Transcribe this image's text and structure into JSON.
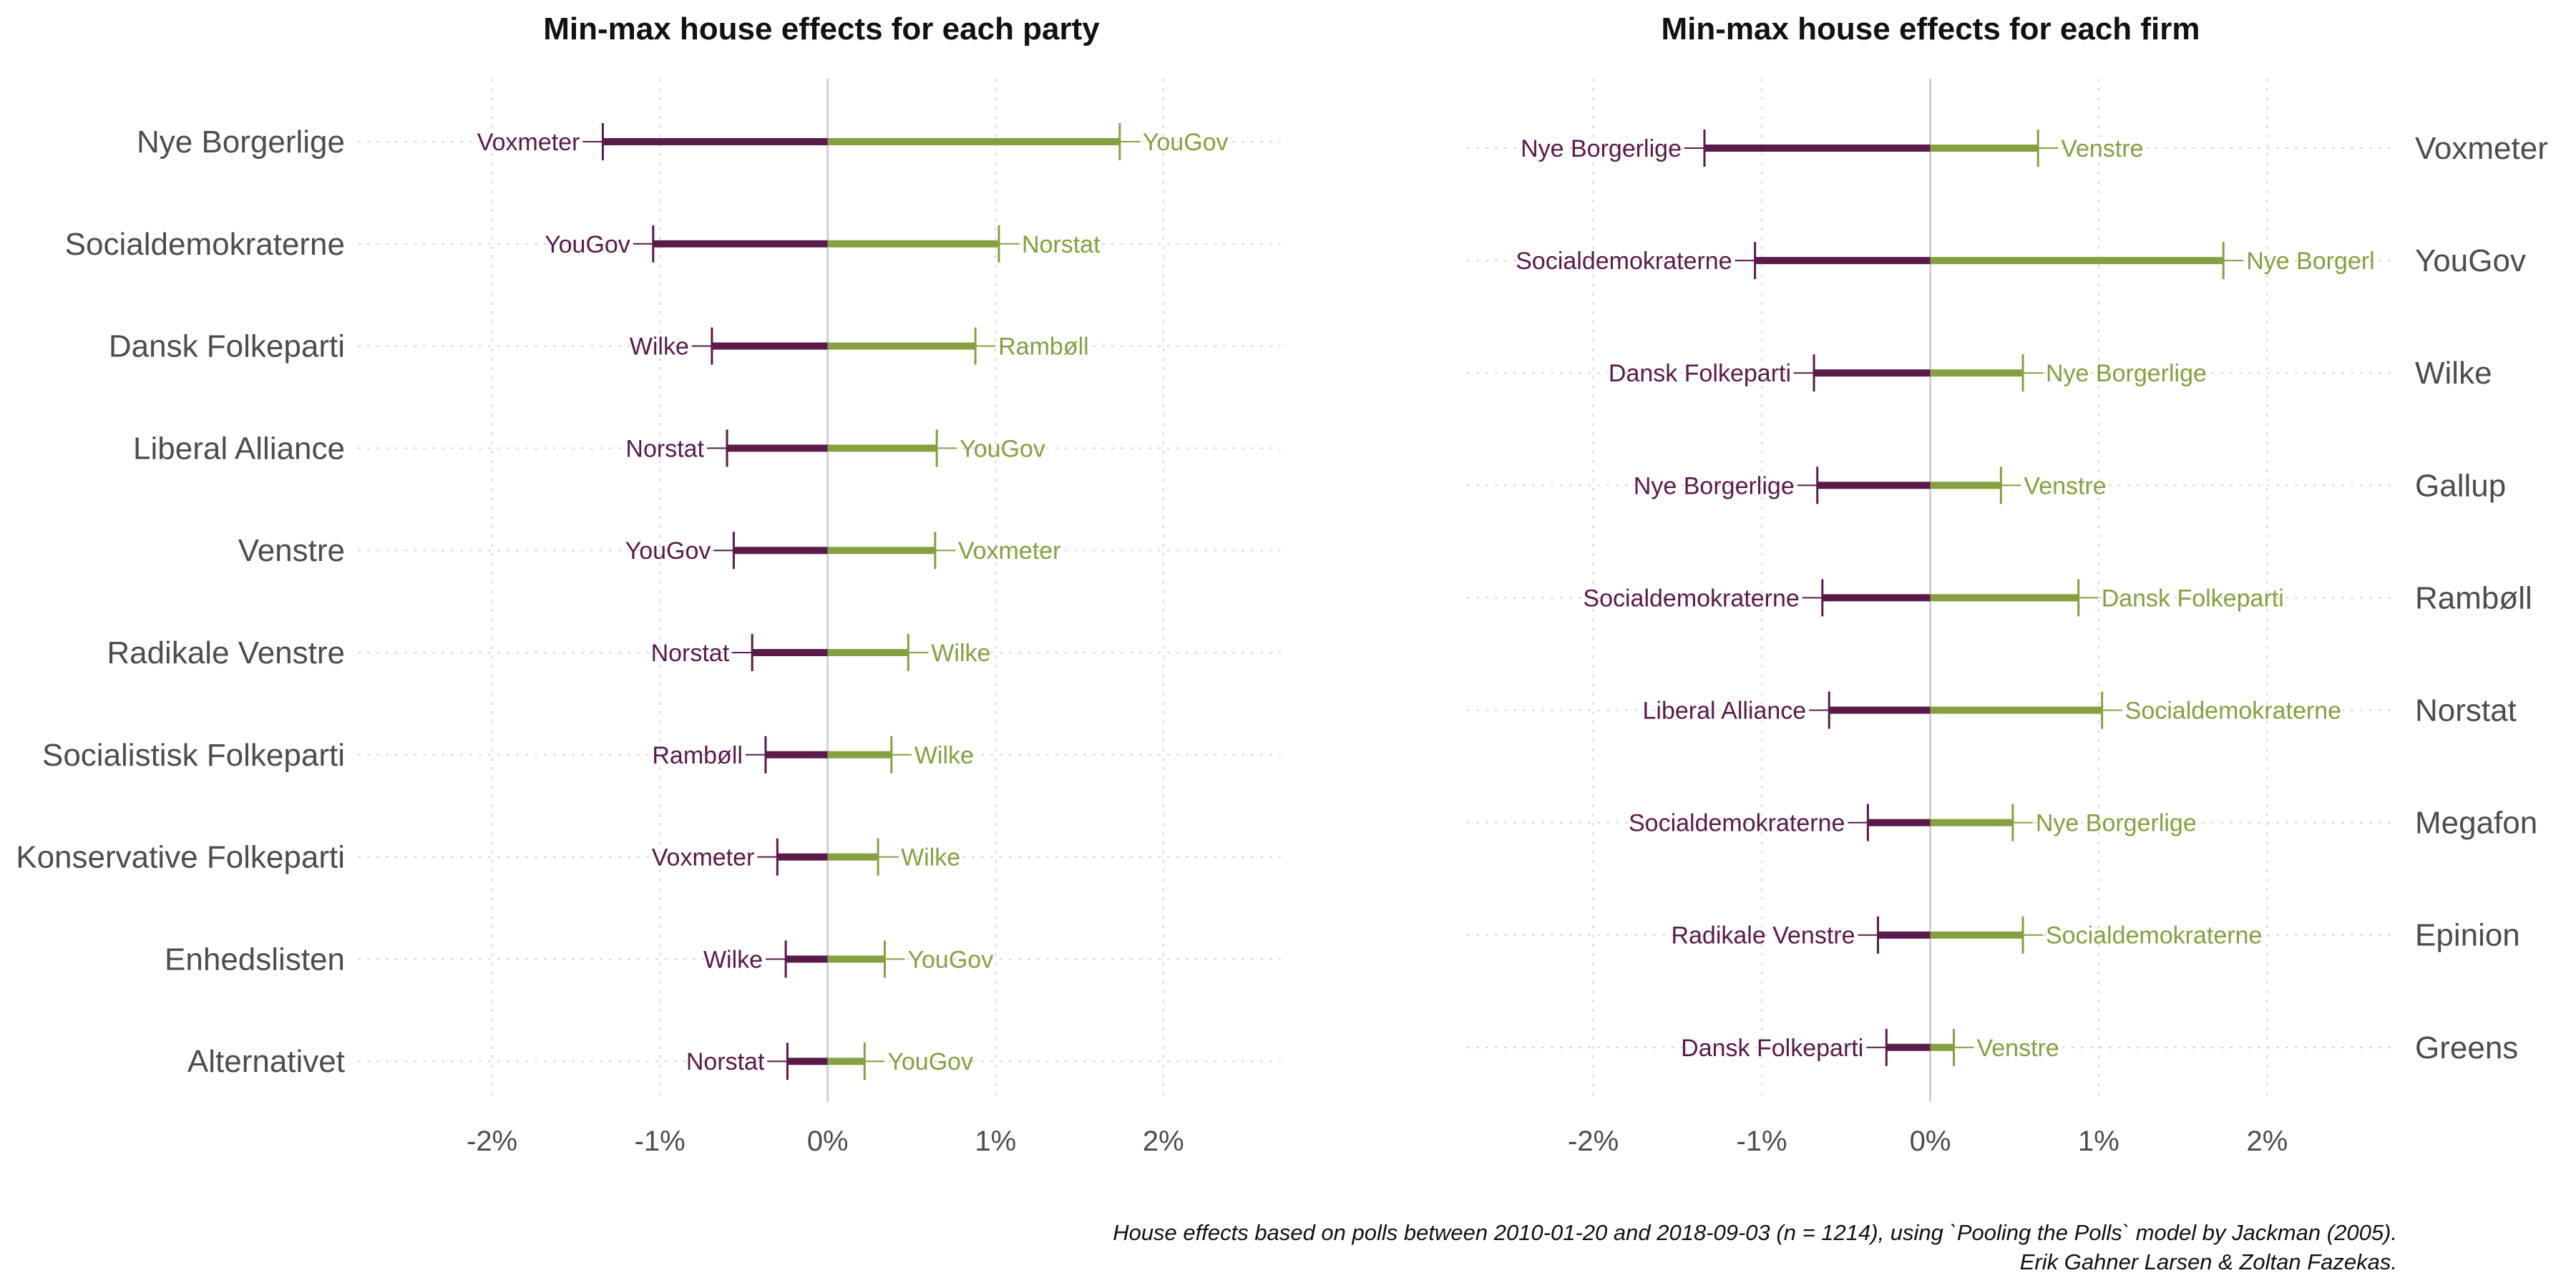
{
  "colors": {
    "negative": "#5a1a4a",
    "positive": "#86a041",
    "grid": "#d9d9d9",
    "zero": "#d0d0d0"
  },
  "caption": {
    "line1": "House effects based on polls between 2010-01-20 and 2018-09-03 (n = 1214), using `Pooling the Polls` model by Jackman (2005).",
    "line2": "Erik Gahner Larsen & Zoltan Fazekas."
  },
  "chart_data": [
    {
      "type": "bar",
      "orientation": "horizontal-range",
      "title": "Min-max house effects for each party",
      "xlim": [
        -2.8,
        2.7
      ],
      "xticks": [
        -2,
        -1,
        0,
        1,
        2
      ],
      "xtick_labels": [
        "-2%",
        "-1%",
        "0%",
        "1%",
        "2%"
      ],
      "category_axis": "left",
      "grid": true,
      "rows": [
        {
          "category": "Nye Borgerlige",
          "min": -1.34,
          "min_label": "Voxmeter",
          "max": 1.74,
          "max_label": "YouGov"
        },
        {
          "category": "Socialdemokraterne",
          "min": -1.04,
          "min_label": "YouGov",
          "max": 1.02,
          "max_label": "Norstat"
        },
        {
          "category": "Dansk Folkeparti",
          "min": -0.69,
          "min_label": "Wilke",
          "max": 0.88,
          "max_label": "Rambøll"
        },
        {
          "category": "Liberal Alliance",
          "min": -0.6,
          "min_label": "Norstat",
          "max": 0.65,
          "max_label": "YouGov"
        },
        {
          "category": "Venstre",
          "min": -0.56,
          "min_label": "YouGov",
          "max": 0.64,
          "max_label": "Voxmeter"
        },
        {
          "category": "Radikale Venstre",
          "min": -0.45,
          "min_label": "Norstat",
          "max": 0.48,
          "max_label": "Wilke"
        },
        {
          "category": "Socialistisk Folkeparti",
          "min": -0.37,
          "min_label": "Rambøll",
          "max": 0.38,
          "max_label": "Wilke"
        },
        {
          "category": "Konservative Folkeparti",
          "min": -0.3,
          "min_label": "Voxmeter",
          "max": 0.3,
          "max_label": "Wilke"
        },
        {
          "category": "Enhedslisten",
          "min": -0.25,
          "min_label": "Wilke",
          "max": 0.34,
          "max_label": "YouGov"
        },
        {
          "category": "Alternativet",
          "min": -0.24,
          "min_label": "Norstat",
          "max": 0.22,
          "max_label": "YouGov"
        }
      ]
    },
    {
      "type": "bar",
      "orientation": "horizontal-range",
      "title": "Min-max house effects for each firm",
      "xlim": [
        -2.75,
        2.75
      ],
      "xticks": [
        -2,
        -1,
        0,
        1,
        2
      ],
      "xtick_labels": [
        "-2%",
        "-1%",
        "0%",
        "1%",
        "2%"
      ],
      "category_axis": "right",
      "grid": true,
      "rows": [
        {
          "category": "Voxmeter",
          "min": -1.34,
          "min_label": "Nye Borgerlige",
          "max": 0.64,
          "max_label": "Venstre"
        },
        {
          "category": "YouGov",
          "min": -1.04,
          "min_label": "Socialdemokraterne",
          "max": 1.74,
          "max_label": "Nye Borgerl"
        },
        {
          "category": "Wilke",
          "min": -0.69,
          "min_label": "Dansk Folkeparti",
          "max": 0.55,
          "max_label": "Nye Borgerlige"
        },
        {
          "category": "Gallup",
          "min": -0.67,
          "min_label": "Nye Borgerlige",
          "max": 0.42,
          "max_label": "Venstre"
        },
        {
          "category": "Rambøll",
          "min": -0.64,
          "min_label": "Socialdemokraterne",
          "max": 0.88,
          "max_label": "Dansk Folkeparti"
        },
        {
          "category": "Norstat",
          "min": -0.6,
          "min_label": "Liberal Alliance",
          "max": 1.02,
          "max_label": "Socialdemokraterne"
        },
        {
          "category": "Megafon",
          "min": -0.37,
          "min_label": "Socialdemokraterne",
          "max": 0.49,
          "max_label": "Nye Borgerlige"
        },
        {
          "category": "Epinion",
          "min": -0.31,
          "min_label": "Radikale Venstre",
          "max": 0.55,
          "max_label": "Socialdemokraterne"
        },
        {
          "category": "Greens",
          "min": -0.26,
          "min_label": "Dansk Folkeparti",
          "max": 0.14,
          "max_label": "Venstre"
        }
      ]
    }
  ]
}
